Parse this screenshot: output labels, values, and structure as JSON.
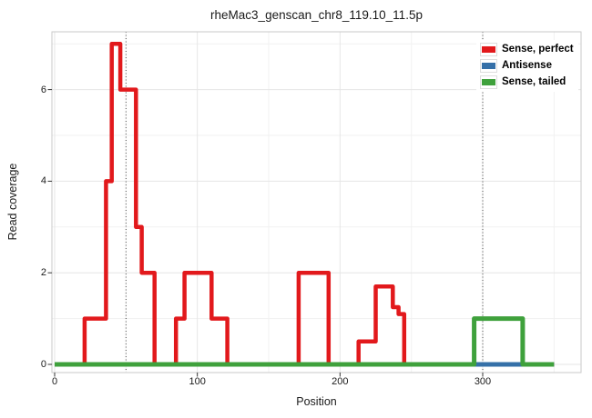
{
  "title": "rheMac3_genscan_chr8_119.10_11.5p",
  "axes": {
    "x_label": "Position",
    "y_label": "Read coverage",
    "x_tick_labels": [
      "0",
      "100",
      "200",
      "300"
    ],
    "x_tick_values": [
      0,
      100,
      200,
      300
    ],
    "y_tick_labels": [
      "0",
      "2",
      "4",
      "6"
    ],
    "y_tick_values": [
      0,
      2,
      4,
      6
    ]
  },
  "legend": {
    "items": [
      {
        "label": "Sense, perfect",
        "color": "#e2191c"
      },
      {
        "label": "Antisense",
        "color": "#3570a8"
      },
      {
        "label": "Sense, tailed",
        "color": "#3fa13c"
      }
    ]
  },
  "colors": {
    "grid_major": "#e6e6e6",
    "grid_minor": "#f1f1f1",
    "panel_border": "#c9c9c9",
    "tick_mark": "#333333",
    "vline": "#4d4d4d",
    "background": "#ffffff"
  },
  "chart_data": {
    "type": "line",
    "subtype": "step-coverage",
    "title": "rheMac3_genscan_chr8_119.10_11.5p",
    "xlabel": "Position",
    "ylabel": "Read coverage",
    "xlim": [
      0,
      350
    ],
    "ylim": [
      0,
      7.2
    ],
    "grid": "on",
    "legend_position": "top-right-inside",
    "x_gridlines_major": [
      0,
      100,
      200,
      300
    ],
    "x_gridlines_minor": [
      50,
      150,
      250,
      350
    ],
    "y_gridlines_major": [
      0,
      2,
      4,
      6
    ],
    "y_gridlines_minor": [
      1,
      3,
      5,
      7
    ],
    "vlines": {
      "positions": [
        50,
        300
      ],
      "style": "dotted"
    },
    "series": [
      {
        "name": "Sense, perfect",
        "color": "#e2191c",
        "width": 4.5,
        "step_vertices": [
          [
            0,
            0
          ],
          [
            21,
            0
          ],
          [
            21,
            1
          ],
          [
            36,
            1
          ],
          [
            36,
            4
          ],
          [
            40,
            4
          ],
          [
            40,
            7
          ],
          [
            46,
            7
          ],
          [
            46,
            6
          ],
          [
            57,
            6
          ],
          [
            57,
            3
          ],
          [
            61,
            3
          ],
          [
            61,
            2
          ],
          [
            70,
            2
          ],
          [
            70,
            0
          ],
          [
            85,
            0
          ],
          [
            85,
            1
          ],
          [
            91,
            1
          ],
          [
            91,
            2
          ],
          [
            110,
            2
          ],
          [
            110,
            1
          ],
          [
            121,
            1
          ],
          [
            121,
            0
          ],
          [
            171,
            0
          ],
          [
            171,
            2
          ],
          [
            192,
            2
          ],
          [
            192,
            0
          ],
          [
            213,
            0
          ],
          [
            213,
            0.5
          ],
          [
            225,
            0.5
          ],
          [
            225,
            1.7
          ],
          [
            237,
            1.7
          ],
          [
            237,
            1.25
          ],
          [
            241,
            1.25
          ],
          [
            241,
            1.1
          ],
          [
            245,
            1.1
          ],
          [
            245,
            0
          ],
          [
            350,
            0
          ]
        ]
      },
      {
        "name": "Antisense",
        "color": "#3570a8",
        "width": 5,
        "step_vertices": [
          [
            0,
            0
          ],
          [
            350,
            0
          ]
        ]
      },
      {
        "name": "Sense, tailed",
        "color": "#3fa13c",
        "width": 5,
        "step_vertices": [
          [
            0,
            0
          ],
          [
            294,
            0
          ],
          [
            294,
            1
          ],
          [
            328,
            1
          ],
          [
            328,
            0
          ],
          [
            350,
            0
          ]
        ]
      }
    ]
  }
}
